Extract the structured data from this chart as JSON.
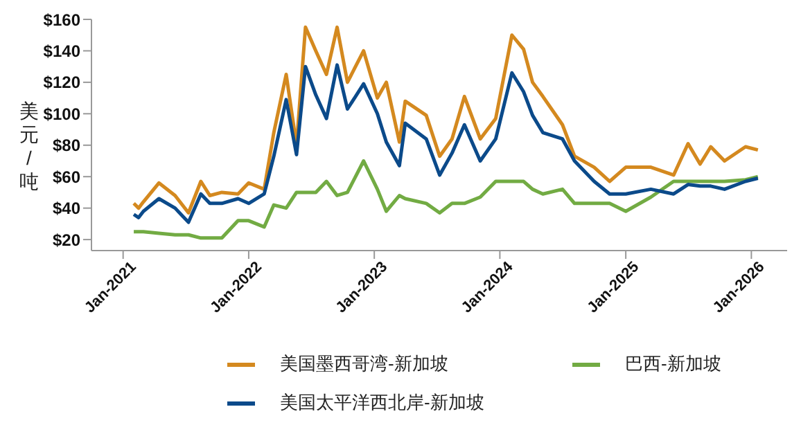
{
  "chart_data": {
    "type": "line",
    "ylabel": "美元/吨",
    "legend": "bottom",
    "line_style": "solid",
    "marker": "none",
    "grid": false,
    "x": [
      "2021-02-01",
      "2021-02-15",
      "2021-03-01",
      "2021-04-15",
      "2021-06-01",
      "2021-07-10",
      "2021-08-15",
      "2021-09-10",
      "2021-10-15",
      "2021-12-01",
      "2022-01-01",
      "2022-02-15",
      "2022-03-15",
      "2022-04-20",
      "2022-05-20",
      "2022-06-15",
      "2022-07-15",
      "2022-08-15",
      "2022-09-15",
      "2022-10-15",
      "2022-12-01",
      "2023-01-10",
      "2023-02-05",
      "2023-03-15",
      "2023-04-01",
      "2023-06-01",
      "2023-07-10",
      "2023-08-15",
      "2023-09-20",
      "2023-11-05",
      "2023-12-20",
      "2024-02-05",
      "2024-03-10",
      "2024-04-05",
      "2024-05-05",
      "2024-07-01",
      "2024-08-05",
      "2024-10-01",
      "2024-11-15",
      "2025-01-01",
      "2025-03-15",
      "2025-05-20",
      "2025-07-01",
      "2025-08-05",
      "2025-09-05",
      "2025-10-15",
      "2025-12-15",
      "2026-01-20"
    ],
    "series": [
      {
        "name": "美国墨西哥湾-新加坡",
        "color": "#d4891f",
        "values": [
          43,
          40,
          44,
          56,
          48,
          37,
          57,
          48,
          50,
          49,
          56,
          52,
          88,
          125,
          80,
          155,
          140,
          125,
          155,
          120,
          140,
          110,
          120,
          82,
          108,
          99,
          73,
          84,
          111,
          84,
          97,
          150,
          141,
          120,
          111,
          93,
          73,
          66,
          57,
          66,
          66,
          61,
          81,
          68,
          79,
          70,
          79,
          77
        ]
      },
      {
        "name": "巴西-新加坡",
        "color": "#72ab43",
        "values": [
          25,
          25,
          25,
          24,
          23,
          23,
          21,
          21,
          21,
          32,
          32,
          28,
          42,
          40,
          50,
          50,
          50,
          57,
          48,
          50,
          70,
          52,
          38,
          48,
          46,
          43,
          37,
          43,
          43,
          47,
          57,
          57,
          57,
          52,
          49,
          52,
          43,
          43,
          43,
          38,
          47,
          57,
          57,
          57,
          57,
          57,
          58,
          60
        ]
      },
      {
        "name": "美国太平洋西北岸-新加坡",
        "color": "#0b4a8a",
        "values": [
          36,
          34,
          38,
          46,
          40,
          31,
          49,
          43,
          43,
          46,
          43,
          49,
          73,
          109,
          74,
          130,
          112,
          97,
          131,
          103,
          119,
          100,
          82,
          67,
          94,
          84,
          61,
          75,
          93,
          70,
          84,
          126,
          114,
          99,
          88,
          84,
          70,
          57,
          49,
          49,
          52,
          49,
          55,
          54,
          54,
          52,
          57,
          59
        ]
      }
    ],
    "xlim": [
      "2020-10-01",
      "2026-04-15"
    ],
    "xticks": [
      {
        "value": "2021-01-01",
        "label": "Jan-2021"
      },
      {
        "value": "2022-01-01",
        "label": "Jan-2022"
      },
      {
        "value": "2023-01-01",
        "label": "Jan-2023"
      },
      {
        "value": "2024-01-01",
        "label": "Jan-2024"
      },
      {
        "value": "2025-01-01",
        "label": "Jan-2025"
      },
      {
        "value": "2026-01-01",
        "label": "Jan-2026"
      }
    ],
    "ylim": [
      13,
      160
    ],
    "yticks": [
      {
        "value": 20,
        "label": "$20"
      },
      {
        "value": 40,
        "label": "$40"
      },
      {
        "value": 60,
        "label": "$60"
      },
      {
        "value": 80,
        "label": "$80"
      },
      {
        "value": 100,
        "label": "$100"
      },
      {
        "value": 120,
        "label": "$120"
      },
      {
        "value": 140,
        "label": "$140"
      },
      {
        "value": 160,
        "label": "$160"
      }
    ]
  }
}
